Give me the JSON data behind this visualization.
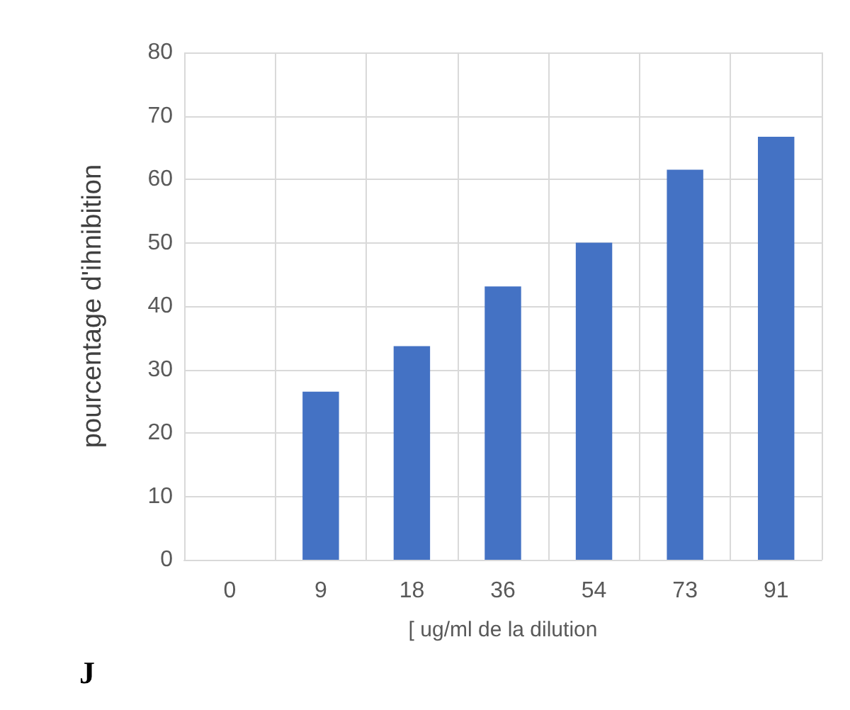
{
  "chart_data": {
    "type": "bar",
    "xlabel": "[ ug/ml de la dilution",
    "ylabel": "pourcentage d'ihnibition",
    "categories": [
      "0",
      "9",
      "18",
      "36",
      "54",
      "73",
      "91"
    ],
    "values": [
      0,
      26.5,
      33.7,
      43.1,
      50.0,
      61.5,
      66.7
    ],
    "color": "#4472c4",
    "ylim": [
      0,
      80
    ],
    "yticks": [
      0,
      10,
      20,
      30,
      40,
      50,
      60,
      70,
      80
    ],
    "grid": true,
    "annotations": [
      "J"
    ]
  }
}
